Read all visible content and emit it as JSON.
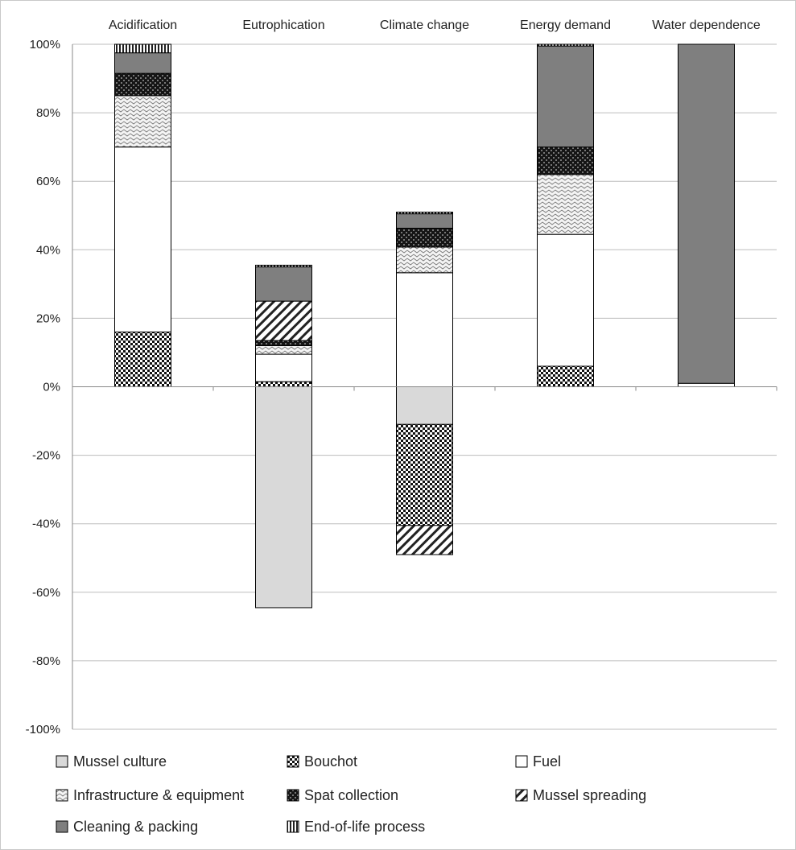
{
  "chart_data": {
    "type": "bar",
    "stacked": true,
    "categories": [
      "Acidification",
      "Eutrophication",
      "Climate change",
      "Energy demand",
      "Water dependence"
    ],
    "y_ticks": [
      "100%",
      "80%",
      "60%",
      "40%",
      "20%",
      "0%",
      "-20%",
      "-40%",
      "-60%",
      "-80%",
      "-100%"
    ],
    "ylim": [
      -100,
      100
    ],
    "grid": true,
    "legend_position": "bottom",
    "series": [
      {
        "name": "Mussel culture",
        "pattern": "light-gray",
        "values": [
          0,
          -64.5,
          -11,
          0,
          0
        ]
      },
      {
        "name": "Bouchot",
        "pattern": "checker",
        "values": [
          16,
          1.5,
          -29.5,
          6,
          0
        ]
      },
      {
        "name": "Fuel",
        "pattern": "white",
        "values": [
          54,
          8,
          33.3,
          38.5,
          1
        ]
      },
      {
        "name": "Infrastructure & equipment",
        "pattern": "wave",
        "values": [
          15,
          2.5,
          7.5,
          17.5,
          0
        ]
      },
      {
        "name": "Spat collection",
        "pattern": "dark-checker",
        "values": [
          6.5,
          1.5,
          5.5,
          8,
          0
        ]
      },
      {
        "name": "Mussel spreading",
        "pattern": "diagonal",
        "values": [
          0,
          11.5,
          -8.5,
          0,
          0
        ]
      },
      {
        "name": "Cleaning & packing",
        "pattern": "dark-gray",
        "values": [
          6,
          10,
          4.2,
          29.5,
          99
        ]
      },
      {
        "name": "End-of-life process",
        "pattern": "vertical",
        "values": [
          2.5,
          0.5,
          0.5,
          0.5,
          0
        ]
      }
    ]
  }
}
